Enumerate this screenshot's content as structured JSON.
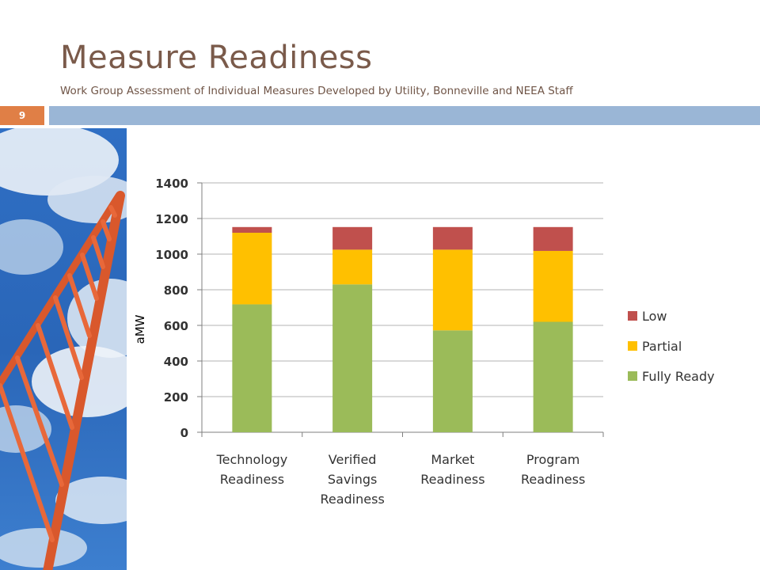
{
  "slide": {
    "title": "Measure Readiness",
    "subtitle": "Work Group Assessment of Individual Measures Developed by Utility, Bonneville and NEEA Staff",
    "page_number": "9"
  },
  "colors": {
    "title": "#7a5a4a",
    "page_badge": "#e07f46",
    "header_bar": "#9ab6d6"
  },
  "chart_data": {
    "type": "bar",
    "stacked": true,
    "categories": [
      [
        "Technology",
        "Readiness"
      ],
      [
        "Verified",
        "Savings",
        "Readiness"
      ],
      [
        "Market",
        "Readiness"
      ],
      [
        "Program",
        "Readiness"
      ]
    ],
    "series": [
      {
        "name": "Fully Ready",
        "color": "#9bbb59",
        "values": [
          718,
          830,
          572,
          620
        ]
      },
      {
        "name": "Partial",
        "color": "#ffc000",
        "values": [
          402,
          195,
          453,
          398
        ]
      },
      {
        "name": "Low",
        "color": "#c0504d",
        "values": [
          32,
          127,
          127,
          134
        ]
      }
    ],
    "ylabel": "aMW",
    "xlabel": "",
    "ylim": [
      0,
      1400
    ],
    "yticks": [
      0,
      200,
      400,
      600,
      800,
      1000,
      1200,
      1400
    ],
    "grid": true,
    "legend_position": "right"
  }
}
